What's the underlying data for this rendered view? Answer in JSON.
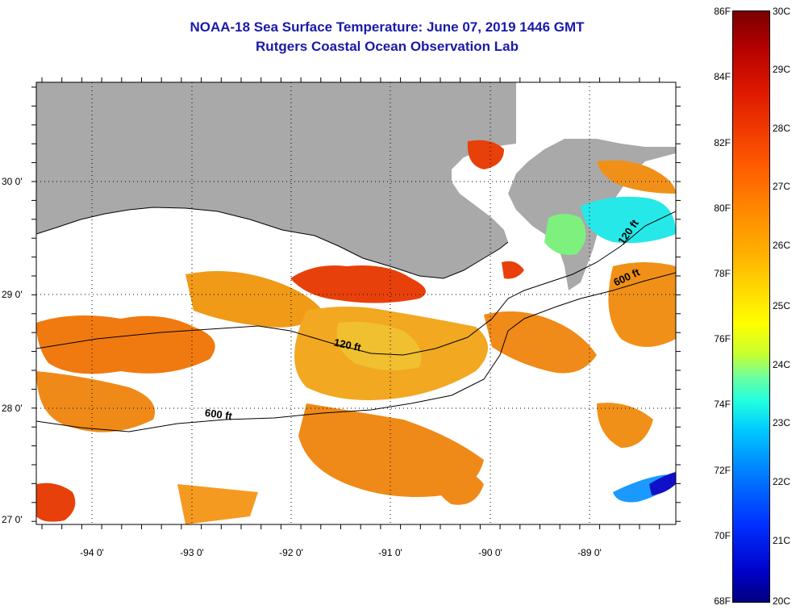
{
  "header": {
    "title": "NOAA-18 Sea Surface Temperature:  June 07, 2019 1446 GMT",
    "subtitle": "Rutgers Coastal Ocean Observation Lab"
  },
  "map": {
    "lat_labels": [
      "30 0'",
      "29 0'",
      "28 0'",
      "27 0'"
    ],
    "lon_labels": [
      "-94 0'",
      "-93 0'",
      "-92 0'",
      "-91 0'",
      "-90 0'",
      "-89 0'"
    ],
    "contour_labels": [
      "120 ft",
      "600 ft",
      "120 ft",
      "600 ft"
    ],
    "land_color": "#a9a9a9",
    "ocean_no_data_color": "#ffffff"
  },
  "colorbar": {
    "fahrenheit_labels": [
      "86F",
      "84F",
      "82F",
      "80F",
      "78F",
      "76F",
      "74F",
      "72F",
      "70F",
      "68F"
    ],
    "celsius_labels": [
      "30C",
      "29C",
      "28C",
      "27C",
      "26C",
      "25C",
      "24C",
      "23C",
      "22C",
      "21C",
      "20C"
    ],
    "top_color": "#7a0000",
    "bottom_color": "#000080"
  }
}
